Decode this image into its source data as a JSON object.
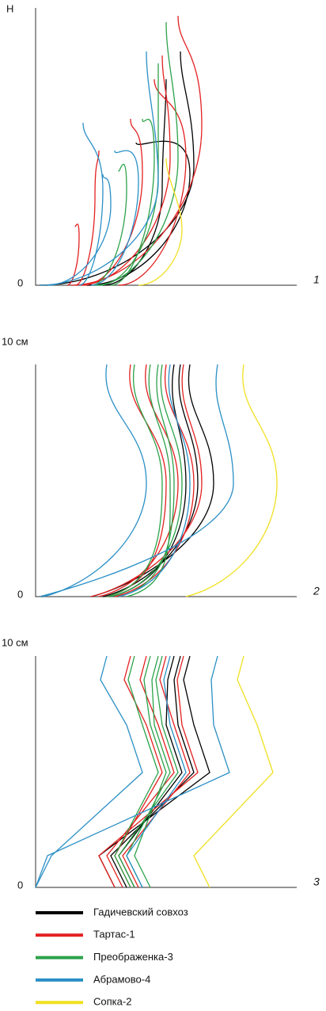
{
  "panels": [
    {
      "y_label": "Н",
      "zero_label": "0",
      "number": "1"
    },
    {
      "y_label": "10 см",
      "zero_label": "0",
      "number": "2"
    },
    {
      "y_label": "10 см",
      "zero_label": "0",
      "number": "3"
    }
  ],
  "legend": [
    {
      "name": "Гадичевский совхоз",
      "color": "#000000"
    },
    {
      "name": "Тартас-1",
      "color": "#e32020"
    },
    {
      "name": "Преображенка-3",
      "color": "#2ca24a"
    },
    {
      "name": "Абрамово-4",
      "color": "#2a8fc6"
    },
    {
      "name": "Сопка-2",
      "color": "#f0e020"
    }
  ]
}
